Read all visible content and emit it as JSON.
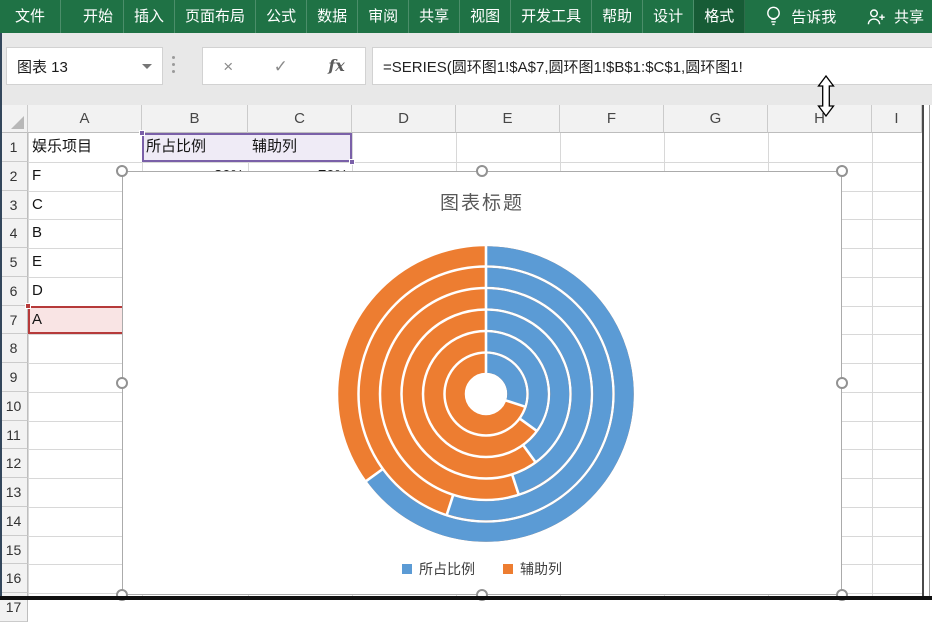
{
  "ribbon": {
    "tabs": [
      {
        "label": "文件",
        "active": false
      },
      {
        "label": "开始",
        "active": false
      },
      {
        "label": "插入",
        "active": false
      },
      {
        "label": "页面布局",
        "active": false
      },
      {
        "label": "公式",
        "active": false
      },
      {
        "label": "数据",
        "active": false
      },
      {
        "label": "审阅",
        "active": false
      },
      {
        "label": "共享",
        "active": false
      },
      {
        "label": "视图",
        "active": false
      },
      {
        "label": "开发工具",
        "active": false
      },
      {
        "label": "帮助",
        "active": false
      },
      {
        "label": "设计",
        "active": false
      },
      {
        "label": "格式",
        "active": true
      }
    ],
    "tell_me_label": "告诉我",
    "share_label": "共享",
    "colors": {
      "ribbon_green": "#1F7245",
      "active_tab_green": "#175C36"
    }
  },
  "formula_bar": {
    "name_box_value": "图表 13",
    "formula_value": "=SERIES(圆环图1!$A$7,圆环图1!$B$1:$C$1,圆环图1!",
    "icons": {
      "cancel": "×",
      "enter": "✓",
      "insert_function": "fx"
    }
  },
  "grid": {
    "column_headers": [
      "A",
      "B",
      "C",
      "D",
      "E",
      "F",
      "G",
      "H",
      "I"
    ],
    "row_headers": [
      "1",
      "2",
      "3",
      "4",
      "5",
      "6",
      "7",
      "8",
      "9",
      "10",
      "11",
      "12",
      "13",
      "14",
      "15",
      "16",
      "17"
    ],
    "cells": [
      {
        "ref": "A1",
        "text": "娱乐项目",
        "align": "left"
      },
      {
        "ref": "B1",
        "text": "所占比例",
        "align": "left"
      },
      {
        "ref": "C1",
        "text": "辅助列",
        "align": "left"
      },
      {
        "ref": "A2",
        "text": "F",
        "align": "left"
      },
      {
        "ref": "B2",
        "text": "30%",
        "align": "right"
      },
      {
        "ref": "C2",
        "text": "70%",
        "align": "right"
      },
      {
        "ref": "A3",
        "text": "C",
        "align": "left"
      },
      {
        "ref": "A4",
        "text": "B",
        "align": "left"
      },
      {
        "ref": "A5",
        "text": "E",
        "align": "left"
      },
      {
        "ref": "A6",
        "text": "D",
        "align": "left"
      },
      {
        "ref": "A7",
        "text": "A",
        "align": "left"
      }
    ],
    "selections": {
      "category_range": {
        "ref": "B1:C1",
        "color": "#7A60A8",
        "fill": "#EFEBF6"
      },
      "series_name_cell": {
        "ref": "A7",
        "color": "#B63A3A",
        "fill": "#F9E4E4"
      }
    }
  },
  "chart_data": {
    "type": "doughnut",
    "title": "图表标题",
    "categories": [
      "所占比例",
      "辅助列"
    ],
    "series": [
      {
        "name": "F",
        "values": [
          30,
          70
        ]
      },
      {
        "name": "C",
        "values": [
          35,
          65
        ]
      },
      {
        "name": "B",
        "values": [
          40,
          60
        ]
      },
      {
        "name": "E",
        "values": [
          45,
          55
        ]
      },
      {
        "name": "D",
        "values": [
          55,
          45
        ]
      },
      {
        "name": "A",
        "values": [
          65,
          35
        ]
      }
    ],
    "unit": "%",
    "ring_order": "first series innermost, clockwise from top",
    "colors": {
      "所占比例": "#5B9BD5",
      "辅助列": "#ED7D31"
    },
    "legend": [
      "所占比例",
      "辅助列"
    ],
    "legend_position": "bottom",
    "selected_series": "A"
  }
}
